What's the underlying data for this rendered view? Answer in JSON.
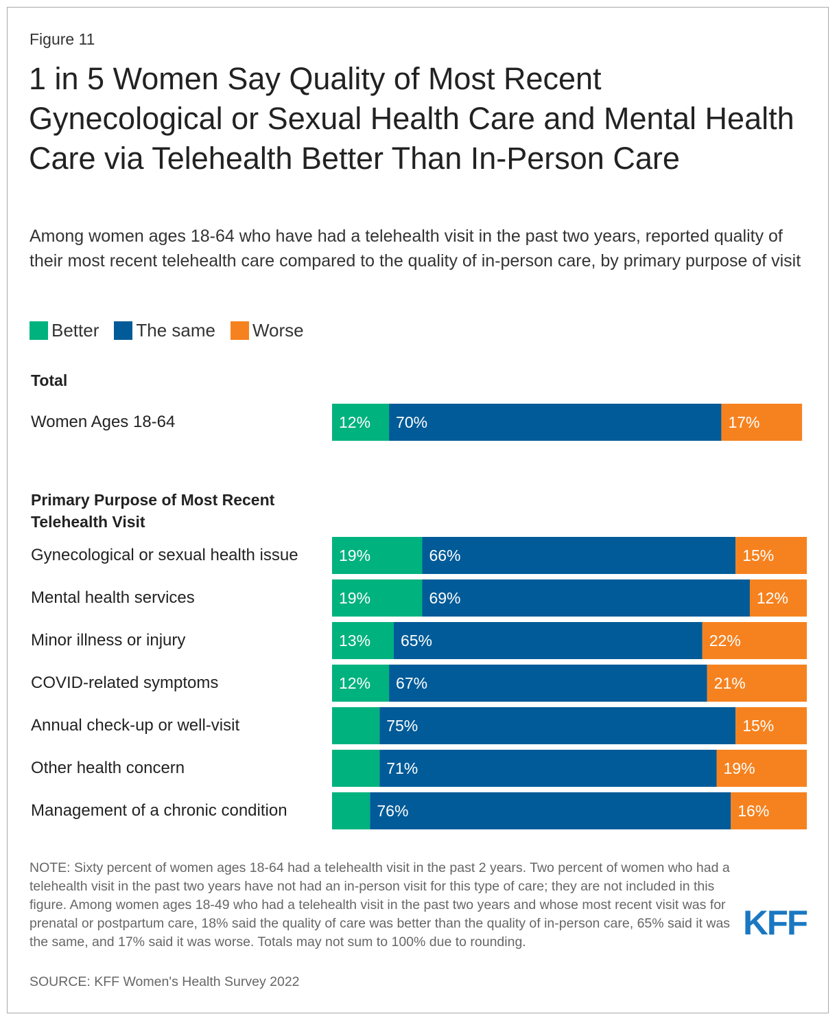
{
  "figure_label": "Figure 11",
  "title": "1 in 5 Women Say Quality of Most Recent Gynecological or Sexual Health Care and Mental Health Care via Telehealth Better Than In-Person Care",
  "subtitle": "Among women ages 18-64 who have had a telehealth visit in the past two years, reported quality of their most recent telehealth care compared to the quality of in-person care, by primary purpose of visit",
  "colors": {
    "better": "#00b27e",
    "same": "#005b98",
    "worse": "#f6821f"
  },
  "legend": [
    {
      "key": "better",
      "label": "Better"
    },
    {
      "key": "same",
      "label": "The same"
    },
    {
      "key": "worse",
      "label": "Worse"
    }
  ],
  "sections": {
    "total": "Total",
    "purpose": "Primary Purpose of Most Recent Telehealth Visit"
  },
  "chart_data": {
    "type": "bar",
    "orientation": "horizontal",
    "stacked": true,
    "title": "1 in 5 Women Say Quality of Most Recent Gynecological or Sexual Health Care and Mental Health Care via Telehealth Better Than In-Person Care",
    "xlim": [
      0,
      100
    ],
    "series_names": [
      "Better",
      "The same",
      "Worse"
    ],
    "rows": [
      {
        "group": "Total",
        "label": "Women Ages 18-64",
        "values": [
          12,
          70,
          17
        ],
        "labels": [
          "12%",
          "70%",
          "17%"
        ]
      },
      {
        "group": "Primary Purpose of Most Recent Telehealth Visit",
        "label": "Gynecological or sexual health issue",
        "values": [
          19,
          66,
          15
        ],
        "labels": [
          "19%",
          "66%",
          "15%"
        ]
      },
      {
        "group": "Primary Purpose of Most Recent Telehealth Visit",
        "label": "Mental health services",
        "values": [
          19,
          69,
          12
        ],
        "labels": [
          "19%",
          "69%",
          "12%"
        ]
      },
      {
        "group": "Primary Purpose of Most Recent Telehealth Visit",
        "label": "Minor illness or injury",
        "values": [
          13,
          65,
          22
        ],
        "labels": [
          "13%",
          "65%",
          "22%"
        ]
      },
      {
        "group": "Primary Purpose of Most Recent Telehealth Visit",
        "label": "COVID-related symptoms",
        "values": [
          12,
          67,
          21
        ],
        "labels": [
          "12%",
          "67%",
          "21%"
        ]
      },
      {
        "group": "Primary Purpose of Most Recent Telehealth Visit",
        "label": "Annual check-up or well-visit",
        "values": [
          10,
          75,
          15
        ],
        "labels": [
          "",
          "75%",
          "15%"
        ]
      },
      {
        "group": "Primary Purpose of Most Recent Telehealth Visit",
        "label": "Other health concern",
        "values": [
          10,
          71,
          19
        ],
        "labels": [
          "",
          "71%",
          "19%"
        ]
      },
      {
        "group": "Primary Purpose of Most Recent Telehealth Visit",
        "label": "Management of a chronic condition",
        "values": [
          8,
          76,
          16
        ],
        "labels": [
          "",
          "76%",
          "16%"
        ]
      }
    ]
  },
  "note": "NOTE: Sixty percent of women ages 18-64 had a telehealth visit in the past 2 years. Two percent of women who had a telehealth visit in the past two years have not had an in-person visit for this type of care; they are not included in this figure. Among women ages 18-49 who had a telehealth visit in the past two years and whose most recent visit was for prenatal or postpartum care, 18% said the quality of care was better than the quality of in-person care, 65% said it was the same, and 17% said it was worse. Totals may not sum to 100% due to rounding.",
  "source": "SOURCE: KFF Women's Health Survey 2022",
  "logo_text": "KFF"
}
